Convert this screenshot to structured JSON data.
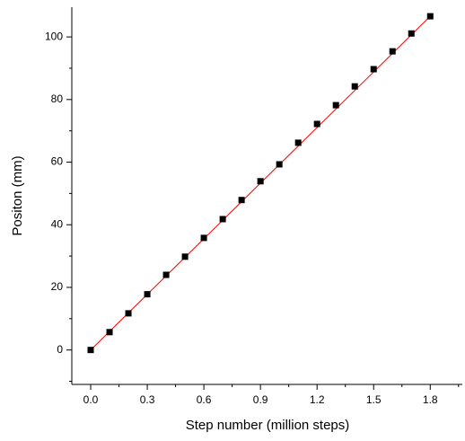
{
  "chart_data": {
    "type": "scatter",
    "x_label": "Step number (million steps)",
    "y_label": "Positon (mm)",
    "x": [
      0.0,
      0.1,
      0.2,
      0.3,
      0.4,
      0.5,
      0.6,
      0.7,
      0.8,
      0.9,
      1.0,
      1.1,
      1.2,
      1.3,
      1.4,
      1.5,
      1.6,
      1.7,
      1.8
    ],
    "values": [
      0,
      5.7,
      11.7,
      17.8,
      24,
      29.8,
      35.8,
      41.8,
      47.9,
      53.9,
      59.3,
      66.2,
      72.2,
      78.2,
      84.2,
      89.7,
      95.4,
      101.1,
      106.6
    ],
    "color": "#000000",
    "fit_line": {
      "x": [
        0,
        1.8
      ],
      "values": [
        0,
        106.6
      ],
      "color": "#ff0000"
    },
    "xlim": [
      -0.1,
      1.97
    ],
    "ylim": [
      -11,
      109.5
    ],
    "xticks": [
      {
        "value": 0,
        "label": "0.0"
      },
      0.3,
      0.6,
      0.9,
      1.2,
      1.5,
      1.8
    ],
    "xminorticks": [
      -0.15,
      0.15,
      0.45,
      0.75,
      1.05,
      1.35,
      1.65,
      1.95
    ],
    "yticks": [
      0,
      20,
      40,
      60,
      80,
      100
    ],
    "yminorticks": [
      -10,
      10,
      30,
      50,
      70,
      90
    ]
  }
}
